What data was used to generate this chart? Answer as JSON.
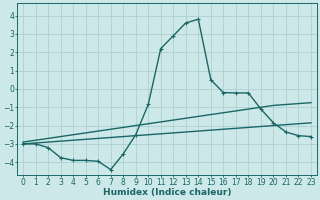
{
  "xlabel": "Humidex (Indice chaleur)",
  "ylabel": "",
  "xlim": [
    -0.5,
    23.5
  ],
  "ylim": [
    -4.7,
    4.7
  ],
  "xticks": [
    0,
    1,
    2,
    3,
    4,
    5,
    6,
    7,
    8,
    9,
    10,
    11,
    12,
    13,
    14,
    15,
    16,
    17,
    18,
    19,
    20,
    21,
    22,
    23
  ],
  "yticks": [
    -4,
    -3,
    -2,
    -1,
    0,
    1,
    2,
    3,
    4
  ],
  "bg_color": "#cde8e8",
  "grid_color": "#aed0d0",
  "line_color": "#1a6666",
  "line1_x": [
    0,
    1,
    2,
    3,
    4,
    5,
    6,
    7,
    8,
    9,
    10,
    11,
    12,
    13,
    14,
    15,
    16,
    17,
    18,
    19,
    20,
    21,
    22,
    23
  ],
  "line1_y": [
    -3.0,
    -3.0,
    -3.2,
    -3.75,
    -3.9,
    -3.9,
    -3.95,
    -4.4,
    -3.55,
    -2.5,
    -0.85,
    2.2,
    2.9,
    3.6,
    3.8,
    0.5,
    -0.2,
    -0.22,
    -0.22,
    -1.1,
    -1.85,
    -2.35,
    -2.55,
    -2.6
  ],
  "line2_x": [
    0,
    1,
    2,
    3,
    4,
    5,
    6,
    7,
    8,
    9,
    10,
    11,
    12,
    13,
    14,
    15,
    16,
    17,
    18,
    19,
    20,
    21,
    22,
    23
  ],
  "line2_y": [
    -2.9,
    -2.8,
    -2.7,
    -2.6,
    -2.5,
    -2.4,
    -2.3,
    -2.2,
    -2.1,
    -2.0,
    -1.9,
    -1.8,
    -1.7,
    -1.6,
    -1.5,
    -1.4,
    -1.3,
    -1.2,
    -1.1,
    -1.0,
    -0.9,
    -0.85,
    -0.8,
    -0.75
  ],
  "line3_x": [
    0,
    1,
    2,
    3,
    4,
    5,
    6,
    7,
    8,
    9,
    10,
    11,
    12,
    13,
    14,
    15,
    16,
    17,
    18,
    19,
    20,
    21,
    22,
    23
  ],
  "line3_y": [
    -3.0,
    -2.95,
    -2.9,
    -2.85,
    -2.8,
    -2.75,
    -2.7,
    -2.65,
    -2.6,
    -2.55,
    -2.5,
    -2.45,
    -2.4,
    -2.35,
    -2.3,
    -2.25,
    -2.2,
    -2.15,
    -2.1,
    -2.05,
    -2.0,
    -1.95,
    -1.9,
    -1.85
  ],
  "marker": "+",
  "markersize": 3,
  "linewidth": 1.0
}
